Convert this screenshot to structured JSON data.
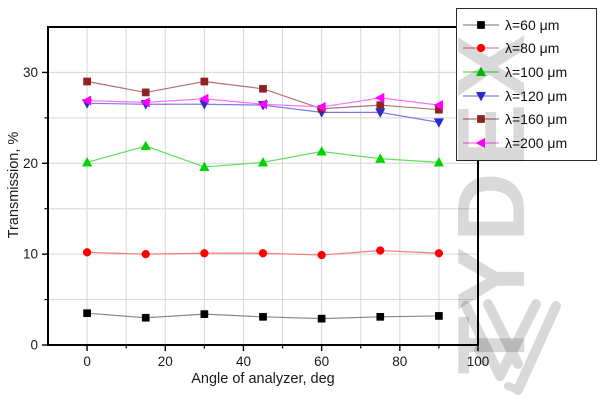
{
  "chart_data": {
    "type": "line",
    "title": "",
    "xlabel": "Angle of analyzer, deg",
    "ylabel": "Transmission, %",
    "xlim": [
      -10,
      100
    ],
    "ylim": [
      0,
      35
    ],
    "x_ticks_major": [
      0,
      20,
      40,
      60,
      80,
      100
    ],
    "x_ticks_minor": [
      10,
      30,
      50,
      70,
      90
    ],
    "y_ticks_major": [
      0,
      10,
      20,
      30
    ],
    "y_ticks_minor": [
      5,
      15,
      25
    ],
    "x_gridlines": [
      0,
      10,
      20,
      30,
      40,
      50,
      60,
      70,
      80,
      90
    ],
    "y_gridlines": [
      5,
      10,
      15,
      20,
      25,
      30
    ],
    "grid_on": true,
    "grid_color": "#d6d6d6",
    "axis_color": "#000000",
    "tick_label_color": "#1a1a1a",
    "legend_position": "top-right",
    "x": [
      0,
      15,
      30,
      45,
      60,
      75,
      90
    ],
    "series": [
      {
        "name": "λ=60 μm",
        "marker": "square",
        "marker_color": "#000000",
        "line_color": "#8a8a8a",
        "values": [
          3.5,
          3.0,
          3.4,
          3.1,
          2.9,
          3.1,
          3.2
        ]
      },
      {
        "name": "λ=80 μm",
        "marker": "circle",
        "marker_color": "#ff0000",
        "line_color": "#ff7a7a",
        "values": [
          10.2,
          10.0,
          10.1,
          10.1,
          9.9,
          10.4,
          10.1
        ]
      },
      {
        "name": "λ=100 μm",
        "marker": "triangle-up",
        "marker_color": "#00d400",
        "line_color": "#5fe05f",
        "values": [
          20.1,
          21.9,
          19.6,
          20.1,
          21.3,
          20.5,
          20.1
        ]
      },
      {
        "name": "λ=120 μm",
        "marker": "triangle-down",
        "marker_color": "#2b2bcc",
        "line_color": "#7d7dde",
        "values": [
          26.6,
          26.5,
          26.5,
          26.4,
          25.6,
          25.6,
          24.5
        ]
      },
      {
        "name": "λ=160 μm",
        "marker": "square",
        "marker_color": "#8f2323",
        "line_color": "#b37272",
        "values": [
          29.0,
          27.8,
          29.0,
          28.2,
          26.0,
          26.4,
          25.9
        ]
      },
      {
        "name": "λ=200 μm",
        "marker": "triangle-left",
        "marker_color": "#ff00ff",
        "line_color": "#ff70ff",
        "values": [
          26.9,
          26.7,
          27.1,
          26.5,
          26.2,
          27.2,
          26.4
        ]
      }
    ]
  },
  "watermark": {
    "text": "TYDEX",
    "color": "#d9d9d9"
  }
}
